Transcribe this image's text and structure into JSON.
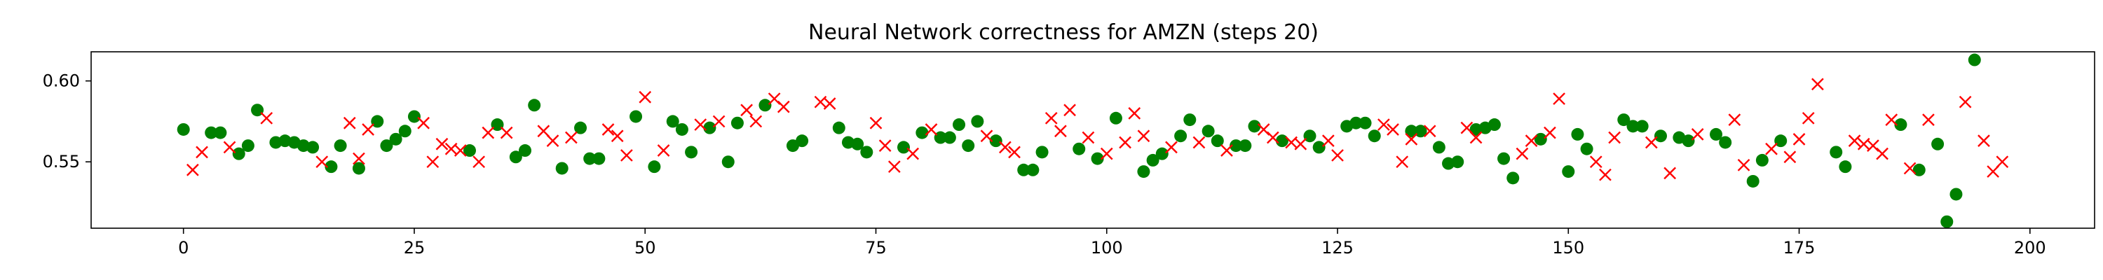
{
  "chart_data": {
    "type": "scatter",
    "title": "Neural Network correctness for AMZN (steps 20)",
    "xlabel": "",
    "ylabel": "",
    "xlim": [
      -10,
      207
    ],
    "ylim": [
      0.509,
      0.618
    ],
    "x_ticks": [
      0,
      25,
      50,
      75,
      100,
      125,
      150,
      175,
      200
    ],
    "y_ticks": [
      0.55,
      0.6
    ],
    "y_tick_labels": [
      "0.55",
      "0.60"
    ],
    "grid": false,
    "legend": "none",
    "series": [
      {
        "marker": "circle",
        "color": "#008000",
        "points": [
          [
            0,
            0.57
          ],
          [
            3,
            0.568
          ],
          [
            4,
            0.568
          ],
          [
            6,
            0.555
          ],
          [
            7,
            0.56
          ],
          [
            8,
            0.582
          ],
          [
            10,
            0.562
          ],
          [
            11,
            0.563
          ],
          [
            12,
            0.562
          ],
          [
            13,
            0.56
          ],
          [
            14,
            0.559
          ],
          [
            16,
            0.547
          ],
          [
            17,
            0.56
          ],
          [
            19,
            0.546
          ],
          [
            21,
            0.575
          ],
          [
            22,
            0.56
          ],
          [
            23,
            0.564
          ],
          [
            24,
            0.569
          ],
          [
            25,
            0.578
          ],
          [
            31,
            0.557
          ],
          [
            34,
            0.573
          ],
          [
            36,
            0.553
          ],
          [
            37,
            0.557
          ],
          [
            38,
            0.585
          ],
          [
            41,
            0.546
          ],
          [
            43,
            0.571
          ],
          [
            44,
            0.552
          ],
          [
            45,
            0.552
          ],
          [
            49,
            0.578
          ],
          [
            51,
            0.547
          ],
          [
            53,
            0.575
          ],
          [
            54,
            0.57
          ],
          [
            55,
            0.556
          ],
          [
            57,
            0.571
          ],
          [
            59,
            0.55
          ],
          [
            60,
            0.574
          ],
          [
            63,
            0.585
          ],
          [
            66,
            0.56
          ],
          [
            67,
            0.563
          ],
          [
            71,
            0.571
          ],
          [
            72,
            0.562
          ],
          [
            73,
            0.561
          ],
          [
            74,
            0.556
          ],
          [
            78,
            0.559
          ],
          [
            80,
            0.568
          ],
          [
            82,
            0.565
          ],
          [
            83,
            0.565
          ],
          [
            84,
            0.573
          ],
          [
            85,
            0.56
          ],
          [
            86,
            0.575
          ],
          [
            88,
            0.563
          ],
          [
            91,
            0.545
          ],
          [
            92,
            0.545
          ],
          [
            93,
            0.556
          ],
          [
            97,
            0.558
          ],
          [
            99,
            0.552
          ],
          [
            101,
            0.577
          ],
          [
            104,
            0.544
          ],
          [
            105,
            0.551
          ],
          [
            106,
            0.555
          ],
          [
            108,
            0.566
          ],
          [
            109,
            0.576
          ],
          [
            111,
            0.569
          ],
          [
            112,
            0.563
          ],
          [
            114,
            0.56
          ],
          [
            115,
            0.56
          ],
          [
            116,
            0.572
          ],
          [
            119,
            0.563
          ],
          [
            122,
            0.566
          ],
          [
            123,
            0.559
          ],
          [
            126,
            0.572
          ],
          [
            127,
            0.574
          ],
          [
            128,
            0.574
          ],
          [
            129,
            0.566
          ],
          [
            133,
            0.569
          ],
          [
            134,
            0.569
          ],
          [
            136,
            0.559
          ],
          [
            137,
            0.549
          ],
          [
            138,
            0.55
          ],
          [
            140,
            0.57
          ],
          [
            141,
            0.571
          ],
          [
            142,
            0.573
          ],
          [
            143,
            0.552
          ],
          [
            144,
            0.54
          ],
          [
            147,
            0.564
          ],
          [
            150,
            0.544
          ],
          [
            151,
            0.567
          ],
          [
            152,
            0.558
          ],
          [
            156,
            0.576
          ],
          [
            157,
            0.572
          ],
          [
            158,
            0.572
          ],
          [
            160,
            0.566
          ],
          [
            162,
            0.565
          ],
          [
            163,
            0.563
          ],
          [
            166,
            0.567
          ],
          [
            167,
            0.562
          ],
          [
            170,
            0.538
          ],
          [
            171,
            0.551
          ],
          [
            173,
            0.563
          ],
          [
            179,
            0.556
          ],
          [
            180,
            0.547
          ],
          [
            186,
            0.573
          ],
          [
            188,
            0.545
          ],
          [
            190,
            0.561
          ],
          [
            191,
            0.513
          ],
          [
            192,
            0.53
          ],
          [
            194,
            0.613
          ]
        ]
      },
      {
        "marker": "x",
        "color": "#ff0000",
        "points": [
          [
            1,
            0.545
          ],
          [
            2,
            0.556
          ],
          [
            5,
            0.559
          ],
          [
            9,
            0.577
          ],
          [
            15,
            0.55
          ],
          [
            18,
            0.574
          ],
          [
            19,
            0.552
          ],
          [
            20,
            0.57
          ],
          [
            26,
            0.574
          ],
          [
            27,
            0.55
          ],
          [
            28,
            0.561
          ],
          [
            29,
            0.558
          ],
          [
            30,
            0.557
          ],
          [
            32,
            0.55
          ],
          [
            33,
            0.568
          ],
          [
            35,
            0.568
          ],
          [
            39,
            0.569
          ],
          [
            40,
            0.563
          ],
          [
            42,
            0.565
          ],
          [
            46,
            0.57
          ],
          [
            47,
            0.566
          ],
          [
            48,
            0.554
          ],
          [
            50,
            0.59
          ],
          [
            52,
            0.557
          ],
          [
            56,
            0.573
          ],
          [
            58,
            0.575
          ],
          [
            61,
            0.582
          ],
          [
            62,
            0.575
          ],
          [
            64,
            0.589
          ],
          [
            65,
            0.584
          ],
          [
            69,
            0.587
          ],
          [
            70,
            0.586
          ],
          [
            75,
            0.574
          ],
          [
            76,
            0.56
          ],
          [
            77,
            0.547
          ],
          [
            79,
            0.555
          ],
          [
            81,
            0.57
          ],
          [
            87,
            0.566
          ],
          [
            89,
            0.559
          ],
          [
            90,
            0.556
          ],
          [
            94,
            0.577
          ],
          [
            95,
            0.569
          ],
          [
            96,
            0.582
          ],
          [
            98,
            0.565
          ],
          [
            100,
            0.555
          ],
          [
            102,
            0.562
          ],
          [
            103,
            0.58
          ],
          [
            104,
            0.566
          ],
          [
            107,
            0.559
          ],
          [
            110,
            0.562
          ],
          [
            113,
            0.557
          ],
          [
            117,
            0.57
          ],
          [
            118,
            0.565
          ],
          [
            120,
            0.562
          ],
          [
            121,
            0.561
          ],
          [
            124,
            0.563
          ],
          [
            125,
            0.554
          ],
          [
            130,
            0.573
          ],
          [
            131,
            0.57
          ],
          [
            132,
            0.55
          ],
          [
            133,
            0.564
          ],
          [
            135,
            0.569
          ],
          [
            139,
            0.571
          ],
          [
            140,
            0.565
          ],
          [
            145,
            0.555
          ],
          [
            146,
            0.563
          ],
          [
            148,
            0.568
          ],
          [
            149,
            0.589
          ],
          [
            153,
            0.55
          ],
          [
            154,
            0.542
          ],
          [
            155,
            0.565
          ],
          [
            159,
            0.562
          ],
          [
            161,
            0.543
          ],
          [
            164,
            0.567
          ],
          [
            168,
            0.576
          ],
          [
            169,
            0.548
          ],
          [
            172,
            0.558
          ],
          [
            174,
            0.553
          ],
          [
            175,
            0.564
          ],
          [
            176,
            0.577
          ],
          [
            177,
            0.598
          ],
          [
            181,
            0.563
          ],
          [
            182,
            0.561
          ],
          [
            183,
            0.56
          ],
          [
            184,
            0.555
          ],
          [
            185,
            0.576
          ],
          [
            187,
            0.546
          ],
          [
            189,
            0.576
          ],
          [
            193,
            0.587
          ],
          [
            195,
            0.563
          ],
          [
            196,
            0.544
          ],
          [
            197,
            0.55
          ]
        ]
      }
    ]
  }
}
